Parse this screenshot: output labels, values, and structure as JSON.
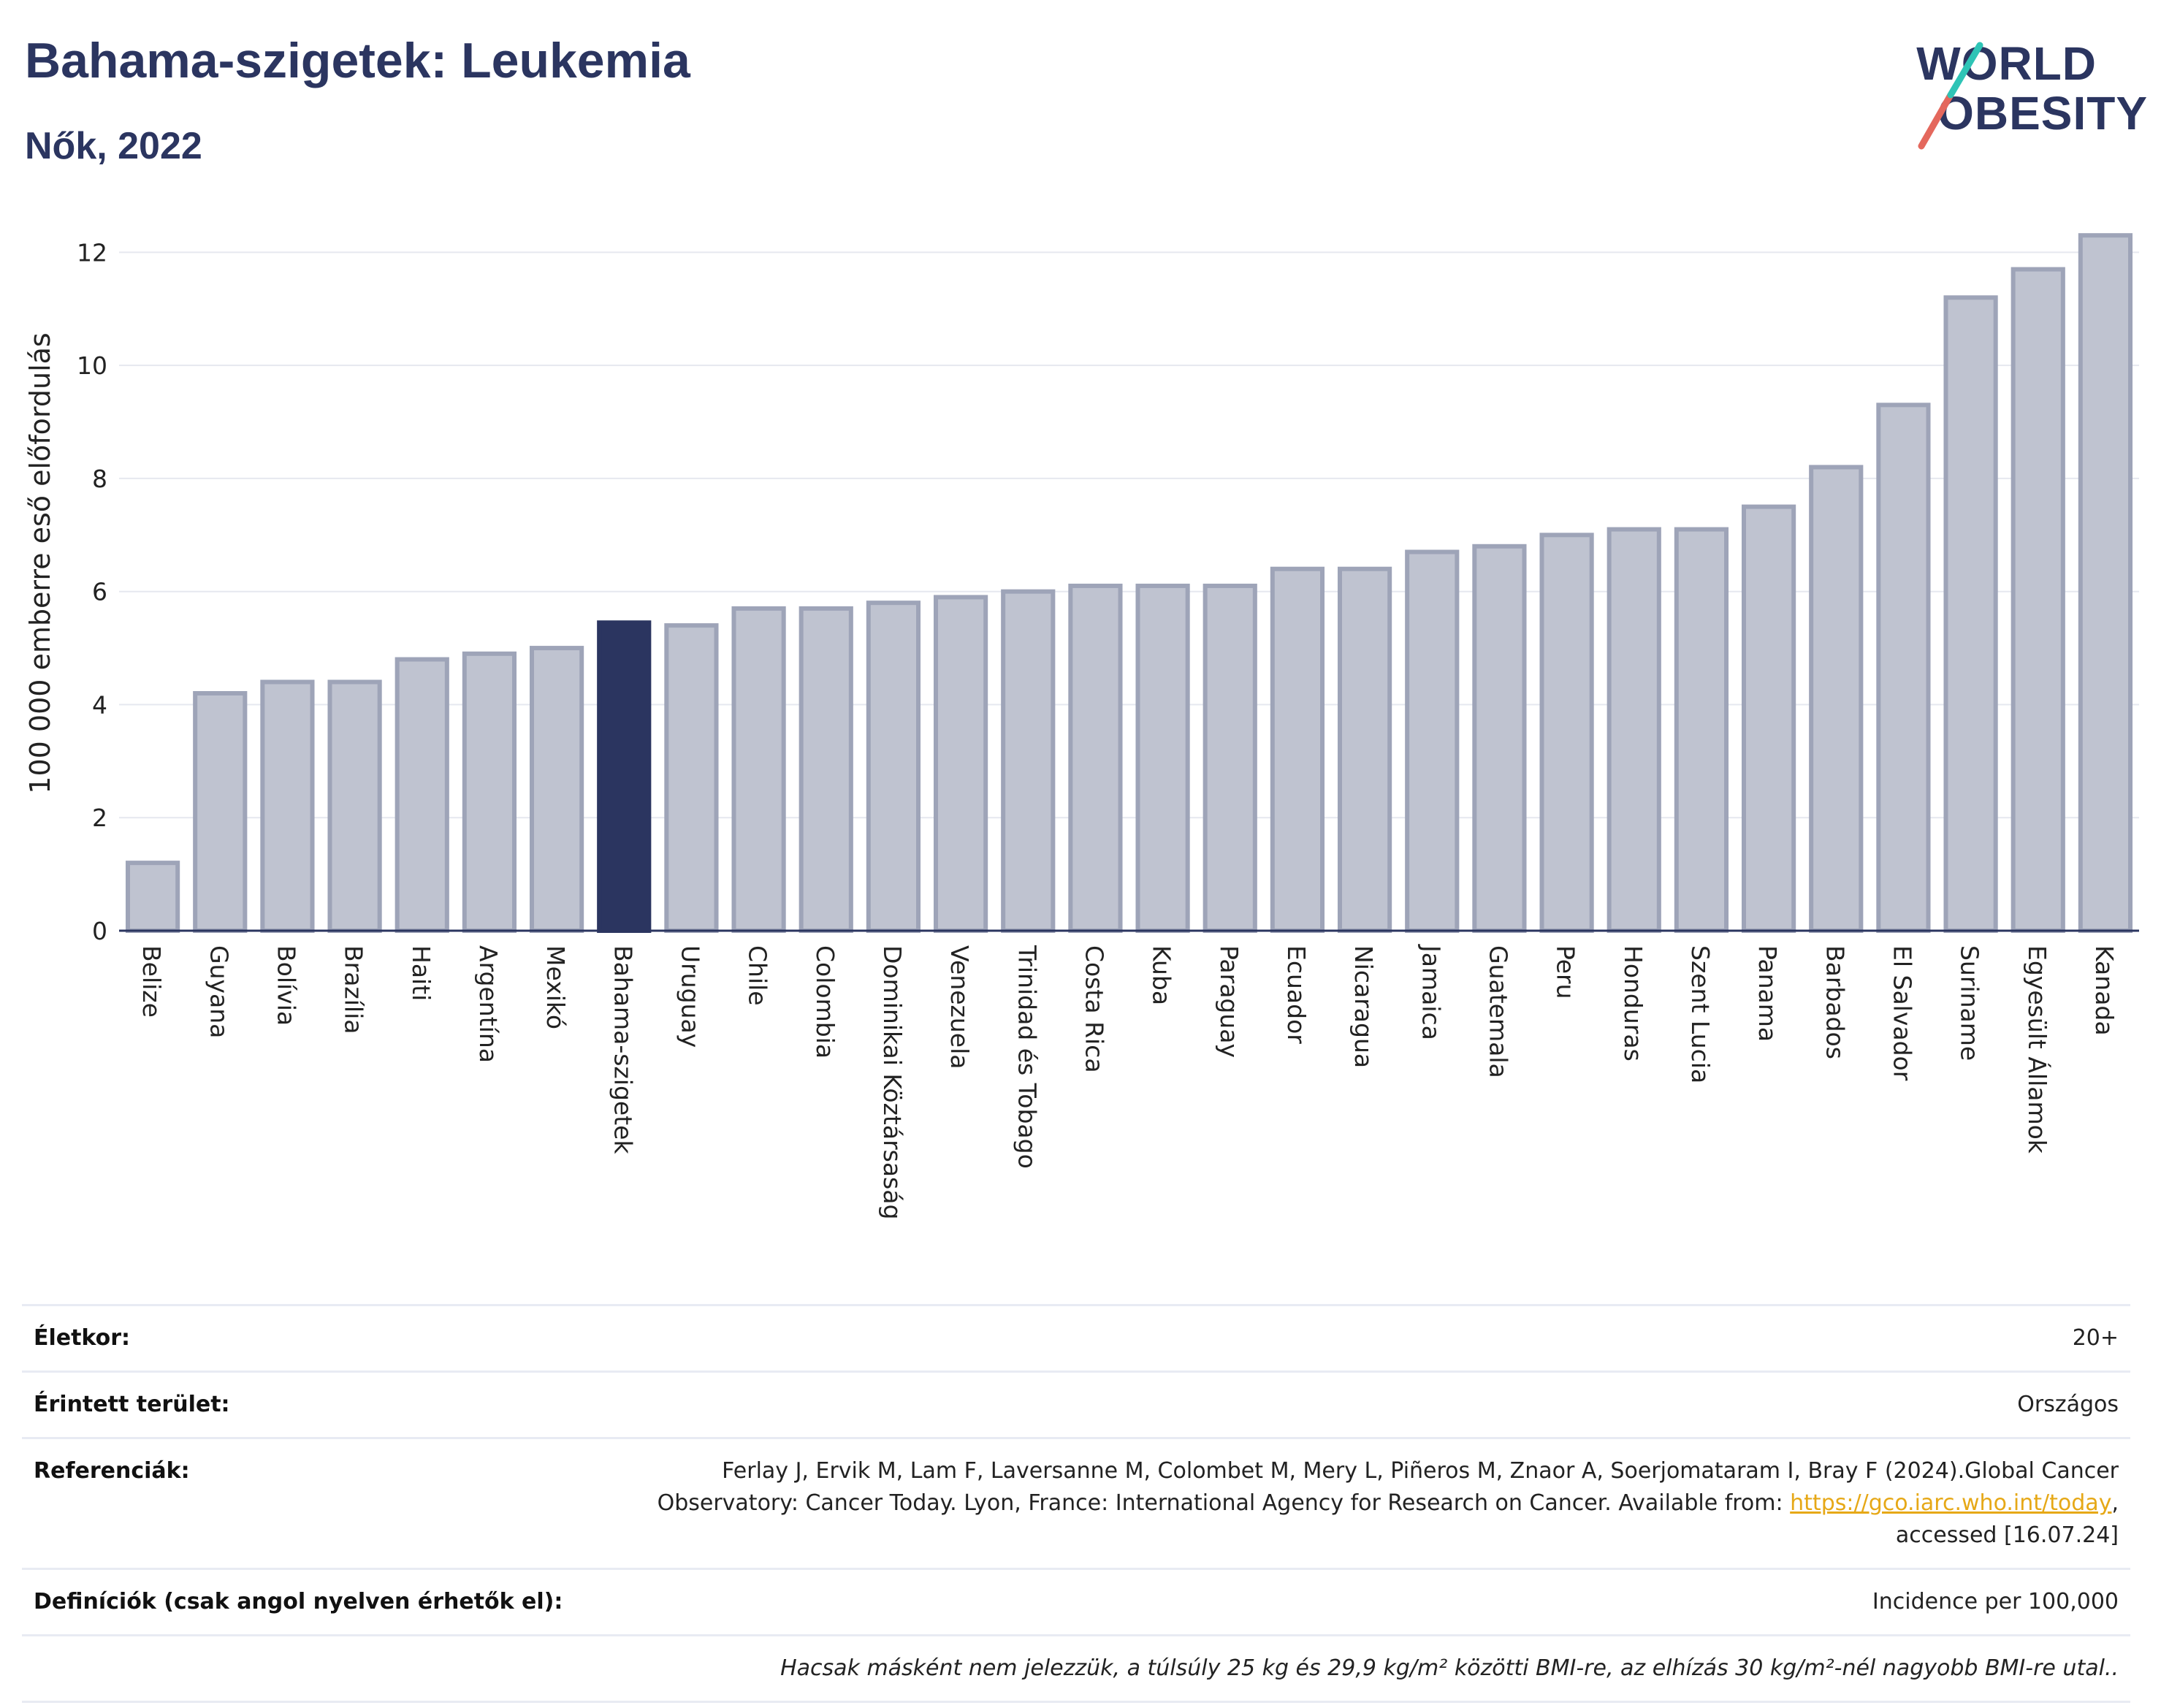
{
  "title": "Bahama-szigetek: Leukemia",
  "subtitle": "Nők, 2022",
  "logo": {
    "line1": "WORLD",
    "line2": "OBESITY",
    "accent_colors": [
      "#2ec4b6",
      "#e4685d"
    ]
  },
  "colors": {
    "bar": "#bfc3d0",
    "bar_stroke": "#9ea4b8",
    "highlight": "#2b3560",
    "grid": "#e6e8ef",
    "axis": "#2b3560"
  },
  "chart_data": {
    "type": "bar",
    "ylabel": "100 000 emberre eső előfordulás",
    "xlabel": "",
    "ylim": [
      0,
      13
    ],
    "yticks": [
      0,
      2,
      4,
      6,
      8,
      10,
      12
    ],
    "grid": true,
    "highlight": "Bahama-szigetek",
    "categories": [
      "Belize",
      "Guyana",
      "Bolívia",
      "Brazília",
      "Haiti",
      "Argentína",
      "Mexikó",
      "Bahama-szigetek",
      "Uruguay",
      "Chile",
      "Colombia",
      "Dominikai Köztársaság",
      "Venezuela",
      "Trinidad és Tobago",
      "Costa Rica",
      "Kuba",
      "Paraguay",
      "Ecuador",
      "Nicaragua",
      "Jamaica",
      "Guatemala",
      "Peru",
      "Honduras",
      "Szent Lucia",
      "Panama",
      "Barbados",
      "El Salvador",
      "Suriname",
      "Egyesült Államok",
      "Kanada"
    ],
    "values": [
      1.2,
      4.2,
      4.4,
      4.4,
      4.8,
      4.9,
      5.0,
      5.45,
      5.4,
      5.7,
      5.7,
      5.8,
      5.9,
      6.0,
      6.1,
      6.1,
      6.1,
      6.4,
      6.4,
      6.7,
      6.8,
      7.0,
      7.1,
      7.1,
      7.5,
      8.2,
      9.3,
      11.2,
      11.7,
      12.3
    ]
  },
  "info": {
    "age_label": "Életkor:",
    "age_value": "20+",
    "area_label": "Érintett terület:",
    "area_value": "Országos",
    "ref_label": "Referenciák:",
    "ref_text_1": "Ferlay J, Ervik M, Lam F, Laversanne M, Colombet M, Mery L, Piñeros M, Znaor A, Soerjomataram I, Bray F (2024).Global Cancer",
    "ref_text_2": "Observatory: Cancer Today. Lyon, France: International Agency for Research on Cancer. Available from: ",
    "ref_link": "https://gco.iarc.who.int/today",
    "ref_text_3": ",",
    "ref_text_4": "accessed [16.07.24]",
    "def_label": "Definíciók (csak angol nyelven érhetők el):",
    "def_value": "Incidence per 100,000",
    "note": "Hacsak másként nem jelezzük, a túlsúly 25 kg és 29,9 kg/m² közötti BMI-re, az elhízás 30 kg/m²-nél nagyobb BMI-re utal.."
  }
}
